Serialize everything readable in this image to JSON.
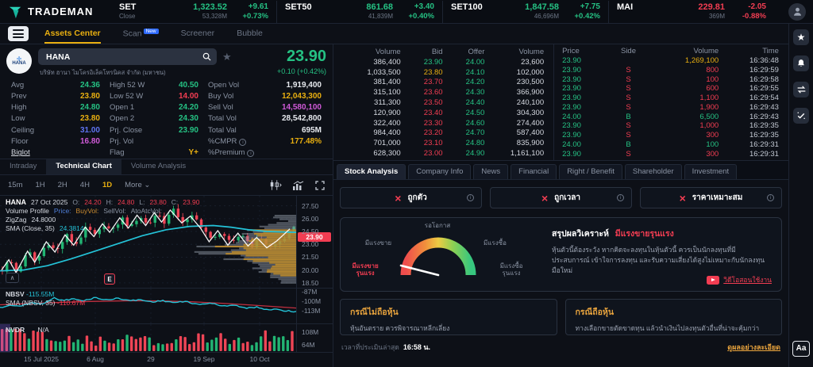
{
  "app": {
    "brand": "TRADEMAN",
    "aa_button": "Aa"
  },
  "header": {
    "indices": [
      {
        "name": "SET",
        "sub": "Close",
        "value": "1,323.52",
        "change": "+9.61",
        "volume": "53,328M",
        "pct": "+0.73%",
        "dir": "up"
      },
      {
        "name": "SET50",
        "sub": "",
        "value": "861.68",
        "change": "+3.40",
        "volume": "41,839M",
        "pct": "+0.40%",
        "dir": "up"
      },
      {
        "name": "SET100",
        "sub": "",
        "value": "1,847.58",
        "change": "+7.75",
        "volume": "46,696M",
        "pct": "+0.42%",
        "dir": "up"
      },
      {
        "name": "MAI",
        "sub": "",
        "value": "229.81",
        "change": "-2.05",
        "volume": "369M",
        "pct": "-0.88%",
        "dir": "down"
      }
    ]
  },
  "nav": {
    "tabs": [
      {
        "label": "Assets Center",
        "active": true
      },
      {
        "label": "Scan",
        "badge": "New"
      },
      {
        "label": "Screener"
      },
      {
        "label": "Bubble"
      }
    ]
  },
  "quote": {
    "symbol": "HANA",
    "company": "บริษัท ฮานา ไมโครอิเล็คโทรนิคส จำกัด (มหาชน)",
    "price": "23.90",
    "change": "+0.10 (+0.42%)"
  },
  "stats": {
    "columns": [
      [
        {
          "label": "Avg",
          "value": "24.36",
          "color": "green"
        },
        {
          "label": "Prev",
          "value": "23.80",
          "color": "yellow"
        },
        {
          "label": "High",
          "value": "24.80",
          "color": "green"
        },
        {
          "label": "Low",
          "value": "23.80",
          "color": "yellow"
        },
        {
          "label": "Ceiling",
          "value": "31.00",
          "color": "blue"
        },
        {
          "label": "Floor",
          "value": "16.80",
          "color": "magenta"
        },
        {
          "label": "Biglot",
          "value": "",
          "link": true
        }
      ],
      [
        {
          "label": "High 52 W",
          "value": "40.50",
          "color": "green"
        },
        {
          "label": "Low 52 W",
          "value": "14.00",
          "color": "red"
        },
        {
          "label": "Open 1",
          "value": "24.20",
          "color": "green"
        },
        {
          "label": "Open 2",
          "value": "24.30",
          "color": "green"
        },
        {
          "label": "Prj. Close",
          "value": "23.90",
          "color": "green"
        },
        {
          "label": "Prj. Vol",
          "value": ""
        },
        {
          "label": "Flag",
          "value": "Y+",
          "color": "yellow"
        }
      ],
      [
        {
          "label": "Open Vol",
          "value": "1,919,400",
          "color": "white"
        },
        {
          "label": "Buy Vol",
          "value": "12,043,300",
          "color": "yellow"
        },
        {
          "label": "Sell Vol",
          "value": "14,580,100",
          "color": "magenta"
        },
        {
          "label": "Total Vol",
          "value": "28,542,800",
          "color": "white"
        },
        {
          "label": "Total Val",
          "value": "695M",
          "color": "white"
        },
        {
          "label": "%CMPR",
          "info": true,
          "value": "177.48%",
          "color": "yellow"
        },
        {
          "label": "%Premium",
          "info": true,
          "value": ""
        }
      ]
    ]
  },
  "orderbook": {
    "headers": [
      "Volume",
      "Bid",
      "Offer",
      "Volume"
    ],
    "rows": [
      {
        "bid_vol": "386,400",
        "bid": "23.90",
        "bid_color": "green",
        "offer": "24.00",
        "offer_vol": "23,600"
      },
      {
        "bid_vol": "1,033,500",
        "bid": "23.80",
        "bid_color": "yellow",
        "offer": "24.10",
        "offer_vol": "102,000"
      },
      {
        "bid_vol": "381,400",
        "bid": "23.70",
        "bid_color": "red",
        "offer": "24.20",
        "offer_vol": "230,500"
      },
      {
        "bid_vol": "315,100",
        "bid": "23.60",
        "bid_color": "red",
        "offer": "24.30",
        "offer_vol": "366,900"
      },
      {
        "bid_vol": "311,300",
        "bid": "23.50",
        "bid_color": "red",
        "offer": "24.40",
        "offer_vol": "240,100"
      },
      {
        "bid_vol": "120,900",
        "bid": "23.40",
        "bid_color": "red",
        "offer": "24.50",
        "offer_vol": "304,300"
      },
      {
        "bid_vol": "322,400",
        "bid": "23.30",
        "bid_color": "red",
        "offer": "24.60",
        "offer_vol": "274,400"
      },
      {
        "bid_vol": "984,400",
        "bid": "23.20",
        "bid_color": "red",
        "offer": "24.70",
        "offer_vol": "587,400"
      },
      {
        "bid_vol": "701,000",
        "bid": "23.10",
        "bid_color": "red",
        "offer": "24.80",
        "offer_vol": "835,900"
      },
      {
        "bid_vol": "628,300",
        "bid": "23.00",
        "bid_color": "red",
        "offer": "24.90",
        "offer_vol": "1,161,100"
      }
    ]
  },
  "trades": {
    "headers": [
      "Price",
      "Side",
      "Volume",
      "Time"
    ],
    "rows": [
      {
        "price": "23.90",
        "side": "",
        "volume": "1,269,100",
        "vol_color": "yellow",
        "time": "16:36:48"
      },
      {
        "price": "23.90",
        "side": "S",
        "volume": "800",
        "vol_color": "red",
        "time": "16:29:59"
      },
      {
        "price": "23.90",
        "side": "S",
        "volume": "100",
        "vol_color": "red",
        "time": "16:29:58"
      },
      {
        "price": "23.90",
        "side": "S",
        "volume": "600",
        "vol_color": "red",
        "time": "16:29:55"
      },
      {
        "price": "23.90",
        "side": "S",
        "volume": "1,100",
        "vol_color": "red",
        "time": "16:29:54"
      },
      {
        "price": "23.90",
        "side": "S",
        "volume": "1,900",
        "vol_color": "red",
        "time": "16:29:43"
      },
      {
        "price": "24.00",
        "side": "B",
        "volume": "6,500",
        "vol_color": "green",
        "time": "16:29:43"
      },
      {
        "price": "23.90",
        "side": "S",
        "volume": "1,000",
        "vol_color": "red",
        "time": "16:29:35"
      },
      {
        "price": "23.90",
        "side": "S",
        "volume": "300",
        "vol_color": "red",
        "time": "16:29:35"
      },
      {
        "price": "24.00",
        "side": "B",
        "volume": "100",
        "vol_color": "green",
        "time": "16:29:31"
      },
      {
        "price": "23.90",
        "side": "S",
        "volume": "300",
        "vol_color": "red",
        "time": "16:29:31"
      }
    ]
  },
  "chart": {
    "tabs": [
      {
        "label": "Intraday"
      },
      {
        "label": "Technical Chart",
        "active": true
      },
      {
        "label": "Volume Analysis"
      }
    ],
    "timeframes": [
      "15m",
      "1H",
      "2H",
      "4H",
      "1D"
    ],
    "active_timeframe": "1D",
    "more_label": "More ⌄",
    "legend": {
      "symbol": "HANA",
      "date": "27 Oct 2025",
      "o_label": "O:",
      "o": "24.20",
      "h_label": "H:",
      "h": "24.80",
      "l_label": "L:",
      "l": "23.80",
      "c_label": "C:",
      "c": "23.90",
      "indicator1": "Volume Profile",
      "price_label": "Price:",
      "buyvol_label": "BuyVol:",
      "sellvol_label": "SellVol:",
      "ato_label": "AtoAtcVol:",
      "zigzag_label": "ZigZag",
      "zigzag_value": "24.8000",
      "sma_label": "SMA (Close, 35)",
      "sma_value": "24.3814"
    },
    "y_axis": [
      "27.50",
      "26.00",
      "24.50",
      "23.00",
      "21.50",
      "20.00",
      "18.50"
    ],
    "last_price": "23.90",
    "event_marker": "E",
    "collapse_glyph": "∧",
    "nbsv": {
      "label": "NBSV",
      "value": "-115.55M",
      "sma_label": "SMA (NBSV, 35)",
      "sma_value": "-110.67M",
      "axis": [
        "-87M",
        "-100M",
        "-113M"
      ]
    },
    "volume": {
      "label": "NVDR",
      "value": "N/A",
      "axis": [
        "108M",
        "64M"
      ]
    },
    "x_axis": [
      "15 Jul 2025",
      "6 Aug",
      "29",
      "19 Sep",
      "10 Oct"
    ],
    "zigzag_points": [
      [
        0,
        20.0
      ],
      [
        0.025,
        21.2
      ],
      [
        0.05,
        19.7
      ],
      [
        0.09,
        22.2
      ],
      [
        0.115,
        20.9
      ],
      [
        0.155,
        23.3
      ],
      [
        0.185,
        22.1
      ],
      [
        0.22,
        24.1
      ],
      [
        0.25,
        22.9
      ],
      [
        0.29,
        25.0
      ],
      [
        0.32,
        23.9
      ],
      [
        0.35,
        25.4
      ],
      [
        0.375,
        24.4
      ],
      [
        0.41,
        26.1
      ],
      [
        0.44,
        24.9
      ],
      [
        0.47,
        26.4
      ],
      [
        0.5,
        25.2
      ],
      [
        0.53,
        26.7
      ],
      [
        0.555,
        25.6
      ],
      [
        0.585,
        27.0
      ],
      [
        0.625,
        25.5
      ],
      [
        0.655,
        26.3
      ],
      [
        0.69,
        24.9
      ],
      [
        0.72,
        23.3
      ],
      [
        0.75,
        24.6
      ],
      [
        0.785,
        22.9
      ],
      [
        0.82,
        24.3
      ],
      [
        0.855,
        22.8
      ],
      [
        0.885,
        23.8
      ],
      [
        0.92,
        22.6
      ],
      [
        0.955,
        23.4
      ],
      [
        1,
        24.8
      ]
    ],
    "sma_points": [
      [
        0,
        19.9
      ],
      [
        0.08,
        20.0
      ],
      [
        0.16,
        20.5
      ],
      [
        0.24,
        21.3
      ],
      [
        0.32,
        22.2
      ],
      [
        0.4,
        23.1
      ],
      [
        0.48,
        24.0
      ],
      [
        0.56,
        24.7
      ],
      [
        0.64,
        25.1
      ],
      [
        0.72,
        25.2
      ],
      [
        0.78,
        25.0
      ],
      [
        0.84,
        24.7
      ],
      [
        0.9,
        24.5
      ],
      [
        1,
        24.4
      ]
    ],
    "nbsv_points": [
      [
        0,
        -110
      ],
      [
        0.04,
        -106.5
      ],
      [
        0.07,
        -108
      ],
      [
        0.11,
        -103
      ],
      [
        0.14,
        -105.5
      ],
      [
        0.18,
        -96.5
      ],
      [
        0.21,
        -100
      ],
      [
        0.25,
        -98
      ],
      [
        0.28,
        -101
      ],
      [
        0.32,
        -96
      ],
      [
        0.36,
        -99.5
      ],
      [
        0.4,
        -97
      ],
      [
        0.44,
        -100.5
      ],
      [
        0.47,
        -99
      ],
      [
        0.51,
        -102
      ],
      [
        0.55,
        -100.5
      ],
      [
        0.59,
        -103
      ],
      [
        0.63,
        -101.5
      ],
      [
        0.67,
        -106
      ],
      [
        0.71,
        -103.5
      ],
      [
        0.75,
        -108
      ],
      [
        0.79,
        -106
      ],
      [
        0.83,
        -111
      ],
      [
        0.87,
        -109
      ],
      [
        0.9,
        -113
      ],
      [
        0.93,
        -111.5
      ],
      [
        0.96,
        -114
      ],
      [
        1,
        -115.5
      ]
    ],
    "nbsv_sma_points": [
      [
        0,
        -106
      ],
      [
        0.15,
        -103.5
      ],
      [
        0.3,
        -101.5
      ],
      [
        0.45,
        -100.5
      ],
      [
        0.55,
        -100.8
      ],
      [
        0.65,
        -102
      ],
      [
        0.75,
        -104
      ],
      [
        0.85,
        -106.5
      ],
      [
        1,
        -110.5
      ]
    ]
  },
  "analysis": {
    "tabs": [
      {
        "label": "Stock Analysis",
        "active": true
      },
      {
        "label": "Company Info"
      },
      {
        "label": "News"
      },
      {
        "label": "Financial"
      },
      {
        "label": "Right / Benefit"
      },
      {
        "label": "Shareholder"
      },
      {
        "label": "Investment"
      }
    ],
    "signals": [
      {
        "label": "ถูกตัว",
        "status": "fail"
      },
      {
        "label": "ถูกเวลา",
        "status": "fail"
      },
      {
        "label": "ราคาเหมาะสม",
        "status": "fail"
      }
    ],
    "gauge": {
      "top": "รอโอกาส",
      "left": "มีแรงขาย",
      "right": "มีแรงซื้อ",
      "bottom_left_lines": [
        "มีแรงขาย",
        "รุนแรง"
      ],
      "bottom_right_lines": [
        "มีแรงซื้อ",
        "รุนแรง"
      ]
    },
    "summary": {
      "title": "สรุปผลวิเคราะห์",
      "result": "มีแรงขายรุนแรง",
      "body": "หุ้นตัวนี้ต้องระวัง หากคิดจะลงทุนในหุ้นตัวนี้ ควรเป็นนักลงทุนที่มีประสบการณ์ เข้าใจการลงทุน และรับความเสี่ยงได้สูงไม่เหมาะกับนักลงทุนมือใหม่",
      "video_label": "วิดีโอสอนใช้งาน"
    },
    "cases": [
      {
        "title": "กรณีไม่ถือหุ้น",
        "body": "หุ้นอันตราย ควรพิจารณาหลีกเลี่ยง"
      },
      {
        "title": "กรณีถือหุ้น",
        "body": "ทางเลือกขายตัดขาดทุน แล้วนำเงินไปลงทุนตัวอื่นที่น่าจะคุ้มกว่า"
      }
    ],
    "footer": {
      "time_label": "เวลาที่ประเมินล่าสุด",
      "time_value": "16:58 น.",
      "detail_link": "ดูผลอย่างละเอียด"
    }
  },
  "sidebar": {
    "icons": [
      "favorites",
      "alerts",
      "transfer",
      "tasks"
    ]
  }
}
